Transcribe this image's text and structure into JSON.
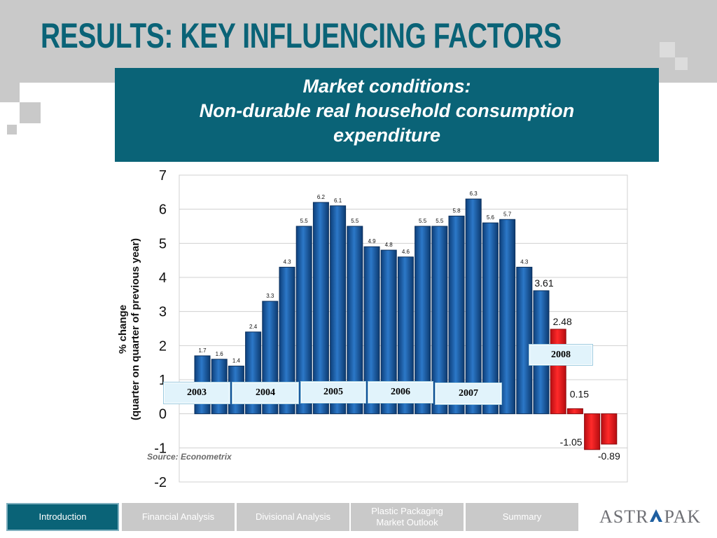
{
  "title": "RESULTS: KEY INFLUENCING FACTORS",
  "subtitle": [
    "Market conditions:",
    "Non-durable real household consumption",
    "expenditure"
  ],
  "source": "Source: Econometrix",
  "nav": {
    "tabs": [
      "Introduction",
      "Financial Analysis",
      "Divisional Analysis",
      "Plastic Packaging Market Outlook",
      "Summary"
    ],
    "active_index": 0
  },
  "logo": {
    "text_a": "ASTR",
    "text_b": "PAK"
  },
  "year_labels": [
    "2003",
    "2004",
    "2005",
    "2006",
    "2007",
    "2008"
  ],
  "colors": {
    "accent": "#0a6377",
    "bar_blue": "#1a5fa8",
    "bar_red": "#e0141b",
    "band_grey": "#c9c9c9"
  },
  "chart_data": {
    "type": "bar",
    "ylabel": "% change\n(quarter on quarter of previous year)",
    "ylim": [
      -2,
      7
    ],
    "yticks": [
      "7",
      "6",
      "5",
      "4",
      "3",
      "2",
      "1",
      "0",
      "-1",
      "-2"
    ],
    "grid": true,
    "values": [
      1.7,
      1.6,
      1.4,
      2.4,
      3.3,
      4.3,
      5.5,
      6.2,
      6.1,
      5.5,
      4.9,
      4.8,
      4.6,
      5.5,
      5.5,
      5.8,
      6.3,
      5.6,
      5.7,
      4.3,
      3.61,
      2.48,
      0.15,
      -1.05,
      -0.89
    ],
    "labels": [
      "1.7",
      "1.6",
      "1.4",
      "2.4",
      "3.3",
      "4.3",
      "5.5",
      "6.2",
      "6.1",
      "5.5",
      "4.9",
      "4.8",
      "4.6",
      "5.5",
      "5.5",
      "5.8",
      "6.3",
      "5.6",
      "5.7",
      "4.3",
      "3.61",
      "2.48",
      "0.15",
      "-1.05",
      "-0.89"
    ],
    "highlight_from_index": 21
  }
}
